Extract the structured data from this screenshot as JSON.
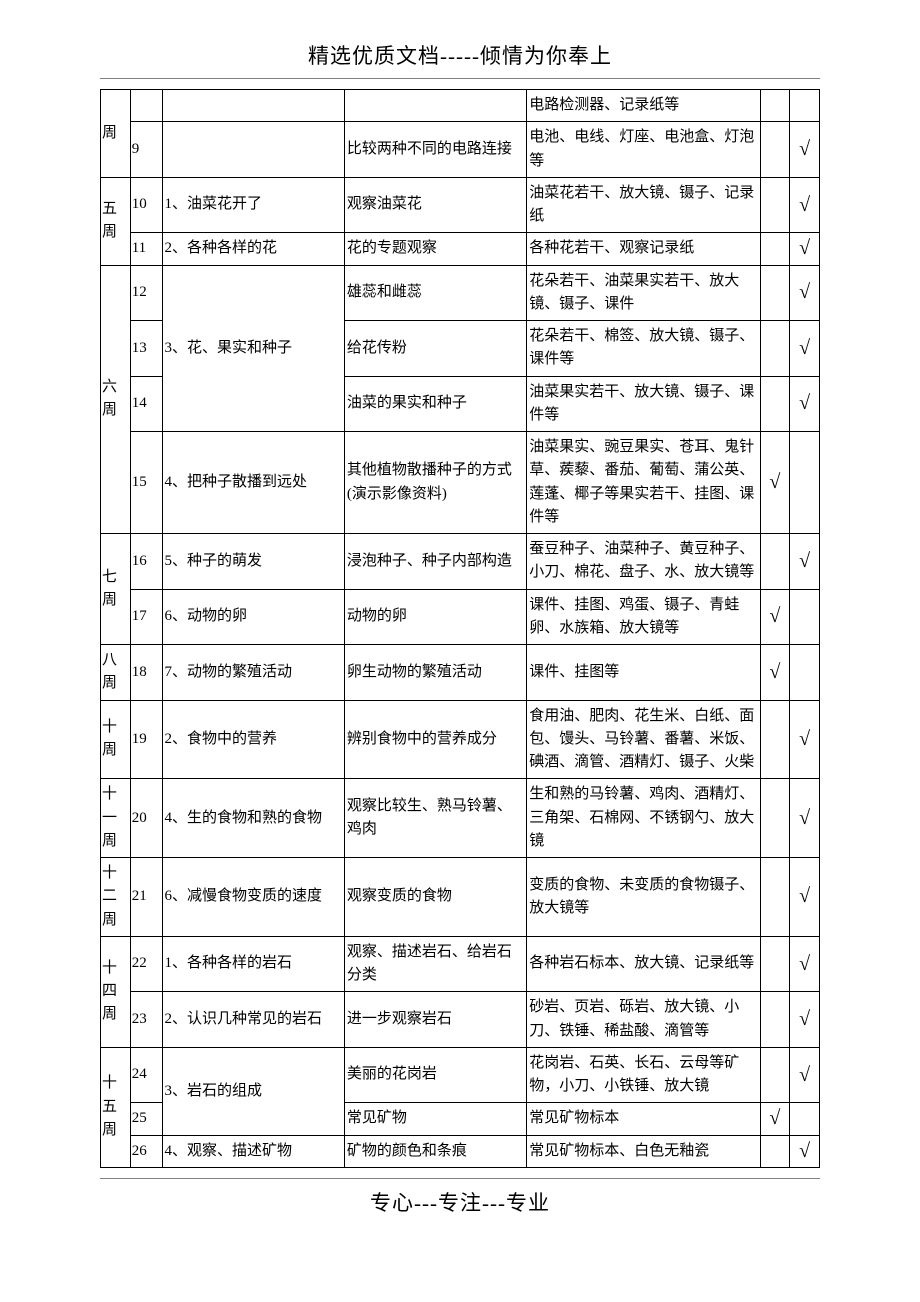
{
  "header": "精选优质文档-----倾情为你奉上",
  "footer": "专心---专注---专业",
  "checkmark": "√",
  "rows": [
    {
      "week": "周",
      "weekRowspan": 2,
      "num": "",
      "topic": "",
      "topicRowspan": 1,
      "activity": "",
      "materials": "电路检测器、记录纸等",
      "c1": "",
      "c2": ""
    },
    {
      "num": "9",
      "activity": "比较两种不同的电路连接",
      "materials": "电池、电线、灯座、电池盒、灯泡等",
      "c1": "",
      "c2": "√"
    },
    {
      "week": "五周",
      "weekRowspan": 2,
      "num": "10",
      "topic": "1、油菜花开了",
      "topicRowspan": 1,
      "activity": "观察油菜花",
      "materials": "油菜花若干、放大镜、镊子、记录纸",
      "c1": "",
      "c2": "√"
    },
    {
      "num": "11",
      "topic": "2、各种各样的花",
      "topicRowspan": 1,
      "activity": "花的专题观察",
      "materials": "各种花若干、观察记录纸",
      "c1": "",
      "c2": "√"
    },
    {
      "week": "六周",
      "weekRowspan": 4,
      "num": "12",
      "topic": "3、花、果实和种子",
      "topicRowspan": 3,
      "activity": "雄蕊和雌蕊",
      "materials": "花朵若干、油菜果实若干、放大镜、镊子、课件",
      "c1": "",
      "c2": "√"
    },
    {
      "num": "13",
      "activity": "给花传粉",
      "materials": "花朵若干、棉签、放大镜、镊子、课件等",
      "c1": "",
      "c2": "√"
    },
    {
      "num": "14",
      "activity": "油菜的果实和种子",
      "materials": "油菜果实若干、放大镜、镊子、课件等",
      "c1": "",
      "c2": "√"
    },
    {
      "num": "15",
      "topic": "4、把种子散播到远处",
      "topicRowspan": 1,
      "activity": "其他植物散播种子的方式(演示影像资料)",
      "materials": "油菜果实、豌豆果实、苍耳、鬼针草、蒺藜、番茄、葡萄、蒲公英、莲蓬、椰子等果实若干、挂图、课件等",
      "c1": "√",
      "c2": ""
    },
    {
      "week": "七周",
      "weekRowspan": 2,
      "num": "16",
      "topic": "5、种子的萌发",
      "topicRowspan": 1,
      "activity": "浸泡种子、种子内部构造",
      "materials": "蚕豆种子、油菜种子、黄豆种子、小刀、棉花、盘子、水、放大镜等",
      "c1": "",
      "c2": "√"
    },
    {
      "num": "17",
      "topic": "6、动物的卵",
      "topicRowspan": 1,
      "activity": "动物的卵",
      "materials": "课件、挂图、鸡蛋、镊子、青蛙卵、水族箱、放大镜等",
      "c1": "√",
      "c2": ""
    },
    {
      "week": "八周",
      "weekRowspan": 1,
      "num": "18",
      "topic": "7、动物的繁殖活动",
      "topicRowspan": 1,
      "activity": "卵生动物的繁殖活动",
      "materials": "课件、挂图等",
      "c1": "√",
      "c2": ""
    },
    {
      "week": "十周",
      "weekRowspan": 1,
      "num": "19",
      "topic": "2、食物中的营养",
      "topicRowspan": 1,
      "activity": "辨别食物中的营养成分",
      "materials": "食用油、肥肉、花生米、白纸、面包、馒头、马铃薯、番薯、米饭、碘酒、滴管、酒精灯、镊子、火柴",
      "c1": "",
      "c2": "√"
    },
    {
      "week": "十一周",
      "weekRowspan": 1,
      "num": "20",
      "topic": "4、生的食物和熟的食物",
      "topicRowspan": 1,
      "activity": "观察比较生、熟马铃薯、鸡肉",
      "materials": "生和熟的马铃薯、鸡肉、酒精灯、三角架、石棉网、不锈钢勺、放大镜",
      "c1": "",
      "c2": "√"
    },
    {
      "week": "十二周",
      "weekRowspan": 1,
      "num": "21",
      "topic": "6、减慢食物变质的速度",
      "topicRowspan": 1,
      "activity": "观察变质的食物",
      "materials": "变质的食物、未变质的食物镊子、放大镜等",
      "c1": "",
      "c2": "√"
    },
    {
      "week": "十四周",
      "weekRowspan": 2,
      "num": "22",
      "topic": "1、各种各样的岩石",
      "topicRowspan": 1,
      "activity": "观察、描述岩石、给岩石分类",
      "materials": "各种岩石标本、放大镜、记录纸等",
      "c1": "",
      "c2": "√"
    },
    {
      "num": "23",
      "topic": "2、认识几种常见的岩石",
      "topicRowspan": 1,
      "activity": "进一步观察岩石",
      "materials": "砂岩、页岩、砾岩、放大镜、小刀、铁锤、稀盐酸、滴管等",
      "c1": "",
      "c2": "√"
    },
    {
      "week": "十五周",
      "weekRowspan": 3,
      "num": "24",
      "topic": "3、岩石的组成",
      "topicRowspan": 2,
      "activity": "美丽的花岗岩",
      "materials": "花岗岩、石英、长石、云母等矿物，小刀、小铁锤、放大镜",
      "c1": "",
      "c2": "√"
    },
    {
      "num": "25",
      "activity": "常见矿物",
      "materials": "常见矿物标本",
      "c1": "√",
      "c2": ""
    },
    {
      "num": "26",
      "topic": "4、观察、描述矿物",
      "topicRowspan": 1,
      "activity": "矿物的颜色和条痕",
      "materials": "常见矿物标本、白色无釉瓷",
      "c1": "",
      "c2": "√"
    }
  ]
}
